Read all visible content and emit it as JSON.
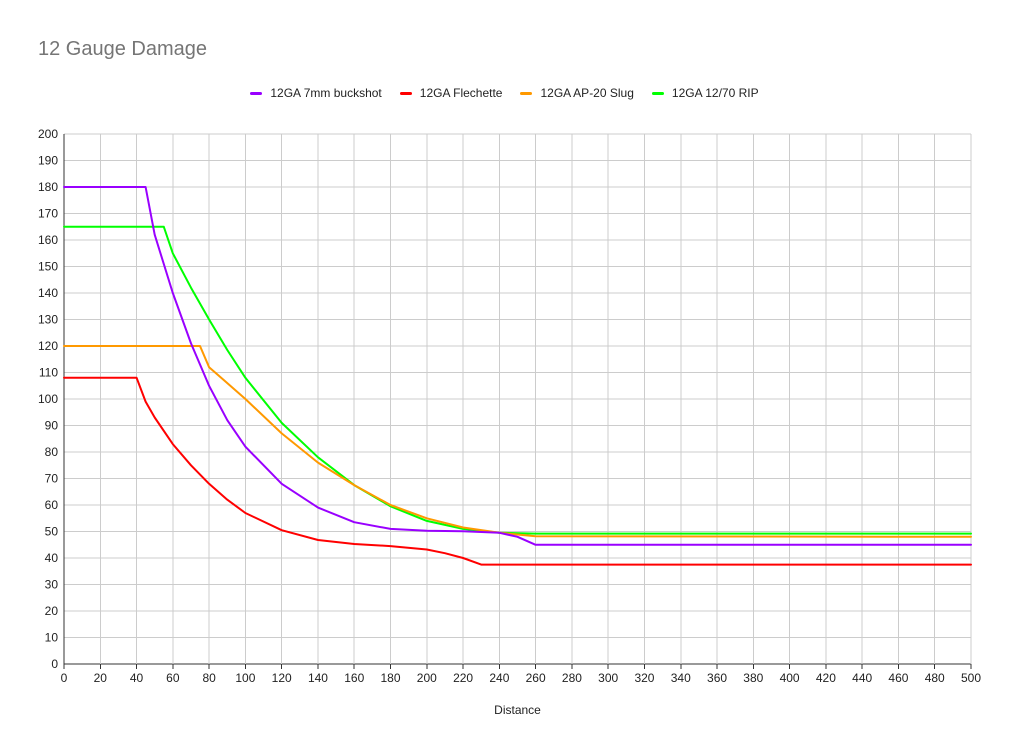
{
  "chart_data": {
    "type": "line",
    "title": "12 Gauge Damage",
    "xlabel": "Distance",
    "ylabel": "",
    "xlim": [
      0,
      500
    ],
    "ylim": [
      0,
      200
    ],
    "xticks": [
      0,
      20,
      40,
      60,
      80,
      100,
      120,
      140,
      160,
      180,
      200,
      220,
      240,
      260,
      280,
      300,
      320,
      340,
      360,
      380,
      400,
      420,
      440,
      460,
      480,
      500
    ],
    "yticks": [
      0,
      10,
      20,
      30,
      40,
      50,
      60,
      70,
      80,
      90,
      100,
      110,
      120,
      130,
      140,
      150,
      160,
      170,
      180,
      190,
      200
    ],
    "grid": true,
    "legend_position": "top",
    "series": [
      {
        "name": "12GA 7mm buckshot",
        "color": "#9900ff",
        "x": [
          0,
          45,
          50,
          60,
          70,
          80,
          90,
          100,
          120,
          140,
          160,
          180,
          200,
          220,
          240,
          250,
          260,
          500
        ],
        "y": [
          180,
          180,
          162,
          140,
          121,
          105,
          92,
          82,
          68,
          59,
          53.5,
          51,
          50.3,
          50.1,
          49.5,
          48,
          45,
          45
        ]
      },
      {
        "name": "12GA Flechette",
        "color": "#ff0000",
        "x": [
          0,
          40,
          45,
          50,
          60,
          70,
          80,
          90,
          100,
          120,
          140,
          160,
          180,
          200,
          210,
          220,
          230,
          500
        ],
        "y": [
          108,
          108,
          99,
          93,
          83,
          75,
          68,
          62,
          57,
          50.5,
          46.8,
          45.3,
          44.5,
          43.2,
          41.8,
          40,
          37.5,
          37.5
        ]
      },
      {
        "name": "12GA AP-20 Slug",
        "color": "#ff9900",
        "x": [
          0,
          75,
          80,
          90,
          100,
          120,
          140,
          160,
          180,
          200,
          220,
          240,
          260,
          500
        ],
        "y": [
          120,
          120,
          112,
          106,
          100,
          87,
          76,
          67.5,
          60,
          55,
          51.5,
          49.5,
          48.2,
          48
        ]
      },
      {
        "name": "12GA 12/70 RIP",
        "color": "#00ff00",
        "x": [
          0,
          55,
          60,
          70,
          80,
          90,
          100,
          120,
          140,
          160,
          180,
          200,
          220,
          240,
          260,
          500
        ],
        "y": [
          165,
          165,
          155,
          142,
          130,
          118.5,
          108,
          91,
          78,
          67.5,
          59.5,
          54,
          51,
          49.5,
          49.2,
          49.2
        ]
      }
    ]
  }
}
